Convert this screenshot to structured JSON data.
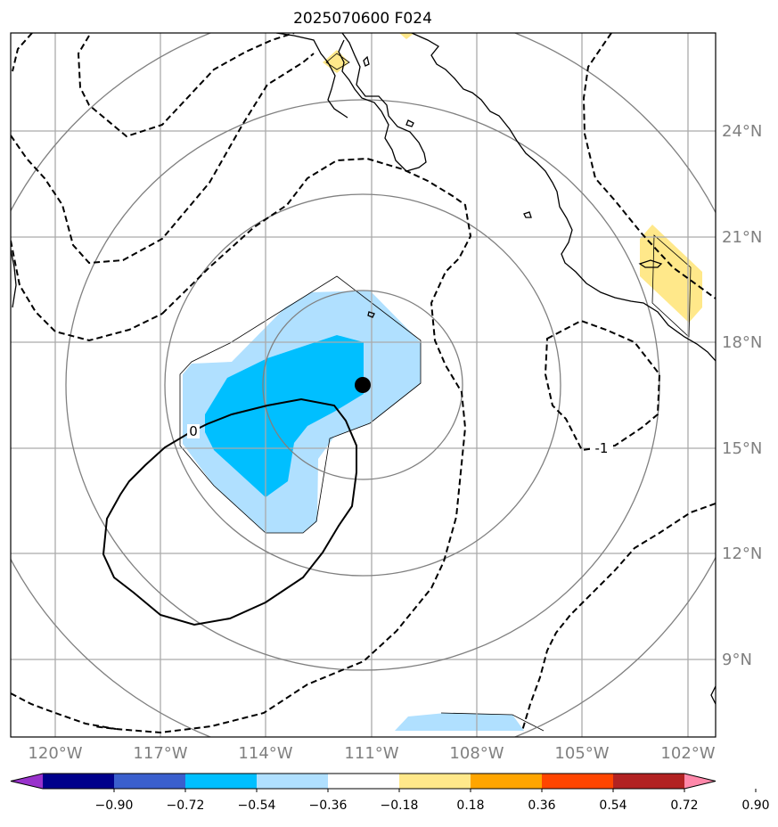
{
  "title": "2025070600 F024",
  "longitude_labels": [
    "120°W",
    "117°W",
    "114°W",
    "111°W",
    "108°W",
    "105°W",
    "102°W"
  ],
  "latitude_labels": [
    "24°N",
    "21°N",
    "18°N",
    "15°N",
    "12°N",
    "9°N"
  ],
  "contour_labels": {
    "solid": "0",
    "dashed": "-1"
  },
  "colorbar": {
    "tick_labels": [
      "−0.90",
      "−0.72",
      "−0.54",
      "−0.36",
      "−0.18",
      "0.18",
      "0.36",
      "0.54",
      "0.72",
      "0.90"
    ],
    "colors": [
      "#9932cc",
      "#00008b",
      "#3a5fcd",
      "#00bfff",
      "#b0e0ff",
      "#ffffff",
      "#ffe88a",
      "#ffa500",
      "#ff4500",
      "#b22222",
      "#ff88aa"
    ]
  },
  "colors": {
    "gridlines": "#aaaaaa",
    "range_rings": "#808080",
    "axis_labels": "#808080",
    "light_blue": "#b0e0ff",
    "deep_sky_blue": "#00bfff",
    "light_yellow": "#ffe88a",
    "center_marker": "#000000"
  }
}
